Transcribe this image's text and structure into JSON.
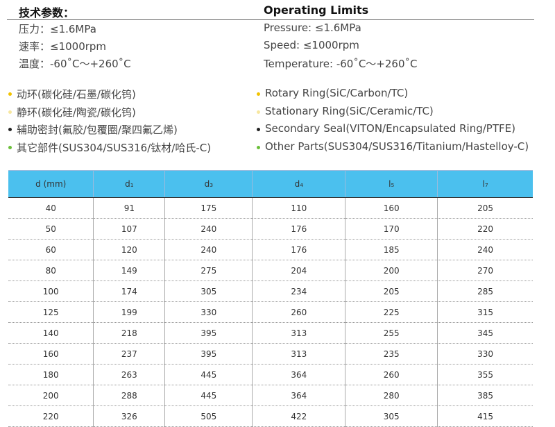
{
  "header": {
    "left_title": "技术参数：",
    "right_title": "Operating Limits"
  },
  "limits_cn": [
    "压力：≤1.6MPa",
    "速率：≤1000rpm",
    "温度：-60˚C～+260˚C"
  ],
  "limits_en": [
    "Pressure:  ≤1.6MPa",
    "Speed:  ≤1000rpm",
    "Temperature:  -60˚C～+260˚C"
  ],
  "materials_cn": [
    "动环(碳化硅/石墨/碳化钨)",
    "静环(碳化硅/陶瓷/碳化钨)",
    "辅助密封(氟胶/包覆圈/聚四氟乙烯)",
    "其它部件(SUS304/SUS316/钛材/哈氏-C)"
  ],
  "materials_en": [
    "Rotary  Ring(SiC/Carbon/TC)",
    "Stationary  Ring(SiC/Ceramic/TC)",
    "Secondary  Seal(VITON/Encapsulated Ring/PTFE)",
    "Other  Parts(SUS304/SUS316/Titanium/Hastelloy-C)"
  ],
  "table": {
    "columns": [
      "d (mm)",
      "d₁",
      "d₃",
      "d₄",
      "l₅",
      "l₇"
    ],
    "rows": [
      [
        40,
        91,
        175,
        110,
        160,
        205
      ],
      [
        50,
        107,
        240,
        176,
        170,
        220
      ],
      [
        60,
        120,
        240,
        176,
        185,
        240
      ],
      [
        80,
        149,
        275,
        204,
        200,
        270
      ],
      [
        100,
        174,
        305,
        234,
        205,
        285
      ],
      [
        125,
        199,
        330,
        260,
        225,
        315
      ],
      [
        140,
        218,
        395,
        313,
        255,
        345
      ],
      [
        160,
        237,
        395,
        313,
        235,
        330
      ],
      [
        180,
        263,
        445,
        364,
        260,
        355
      ],
      [
        200,
        288,
        445,
        364,
        280,
        385
      ],
      [
        220,
        326,
        505,
        422,
        305,
        415
      ]
    ]
  }
}
